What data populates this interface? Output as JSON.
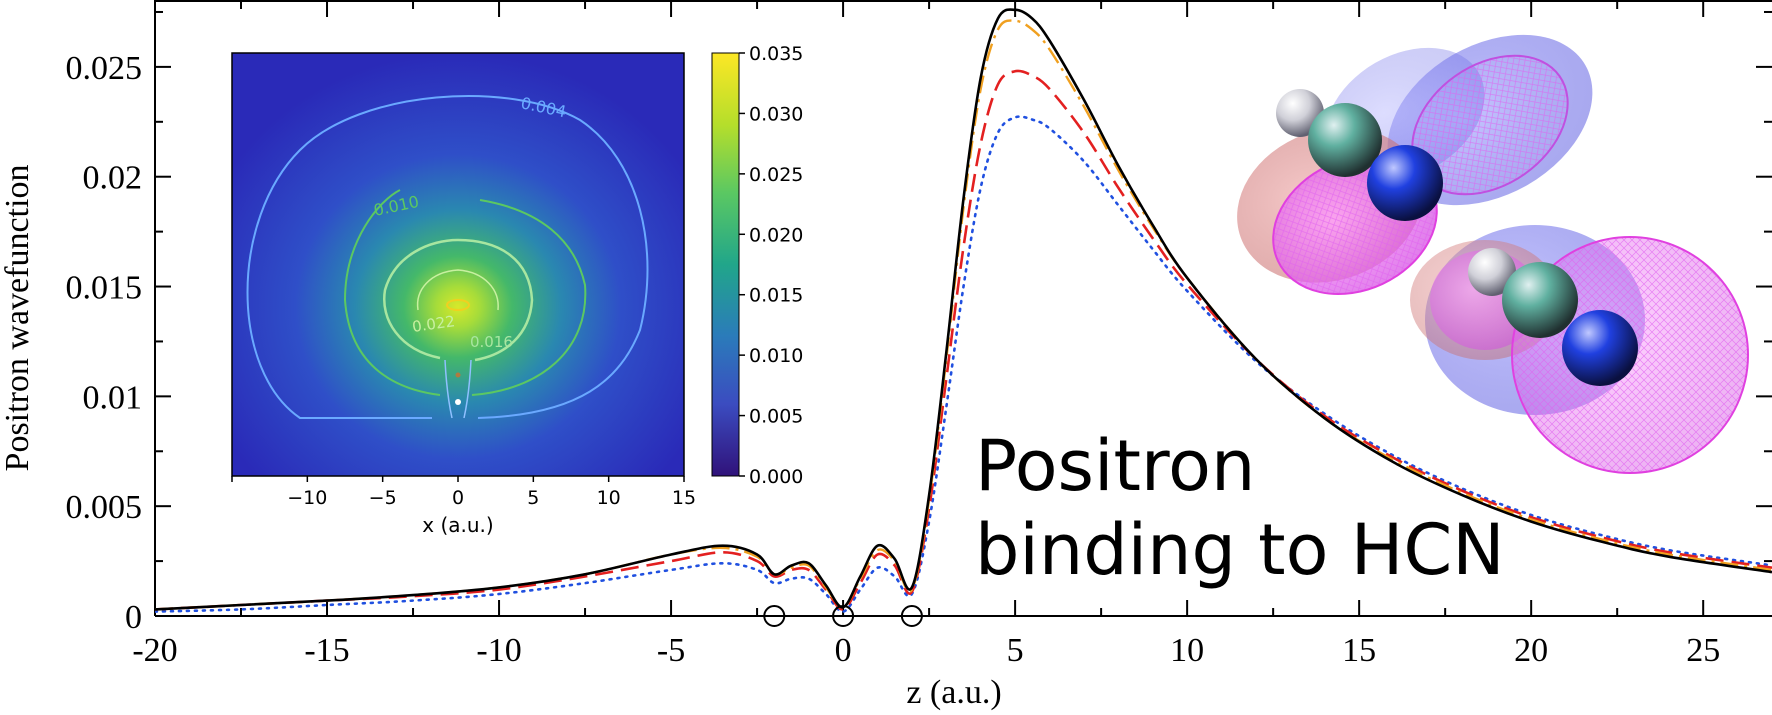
{
  "chart_data": [
    {
      "type": "line",
      "xlabel": "z (a.u.)",
      "ylabel": "Positron wavefunction",
      "xlim": [
        -20,
        27
      ],
      "ylim": [
        0,
        0.028
      ],
      "x_ticks": [
        -20,
        -15,
        -10,
        -5,
        0,
        5,
        10,
        15,
        20,
        25
      ],
      "x_tick_labels": [
        "-20",
        "-15",
        "-10",
        "-5",
        "0",
        "5",
        "10",
        "15",
        "20",
        "25"
      ],
      "y_ticks": [
        0,
        0.005,
        0.01,
        0.015,
        0.02,
        0.025
      ],
      "y_tick_labels": [
        "0",
        "0.005",
        "0.01",
        "0.015",
        "0.02",
        "0.025"
      ],
      "nuclei_z": [
        -2,
        0,
        2
      ],
      "series": [
        {
          "style": "solid",
          "color": "#000000",
          "x": [
            -20,
            -17.5,
            -15,
            -12.5,
            -10,
            -7.5,
            -5,
            -3.5,
            -2.5,
            -2,
            -1.5,
            -1,
            -0.5,
            0,
            0.5,
            1,
            1.5,
            2,
            2.5,
            3,
            3.5,
            4,
            4.5,
            5,
            5.5,
            6,
            7,
            8,
            9,
            10,
            12,
            14,
            16,
            18,
            20,
            22,
            24,
            27
          ],
          "y": [
            0.0003,
            0.0005,
            0.0007,
            0.00095,
            0.0013,
            0.0019,
            0.0028,
            0.0032,
            0.0028,
            0.0019,
            0.0023,
            0.0024,
            0.0014,
            0.0004,
            0.0018,
            0.0032,
            0.0026,
            0.0013,
            0.0055,
            0.012,
            0.019,
            0.0245,
            0.0272,
            0.0276,
            0.0272,
            0.0262,
            0.0235,
            0.0205,
            0.0178,
            0.0154,
            0.0117,
            0.009,
            0.007,
            0.0055,
            0.0043,
            0.0034,
            0.0027,
            0.002
          ]
        },
        {
          "style": "dash-dot",
          "color": "#f0a020",
          "x": [
            -20,
            -17.5,
            -15,
            -12.5,
            -10,
            -7.5,
            -5,
            -3.5,
            -2.5,
            -2,
            -1.5,
            -1,
            -0.5,
            0,
            0.5,
            1,
            1.5,
            2,
            2.5,
            3,
            3.5,
            4,
            4.5,
            5,
            5.5,
            6,
            7,
            8,
            9,
            10,
            12,
            14,
            16,
            18,
            20,
            22,
            24,
            27
          ],
          "y": [
            0.0003,
            0.0005,
            0.0007,
            0.00095,
            0.0013,
            0.0019,
            0.0028,
            0.0031,
            0.0027,
            0.0019,
            0.0022,
            0.0023,
            0.0013,
            0.0004,
            0.0017,
            0.003,
            0.0025,
            0.0012,
            0.0053,
            0.0117,
            0.0186,
            0.024,
            0.0267,
            0.0271,
            0.0267,
            0.0258,
            0.0232,
            0.0203,
            0.0177,
            0.0154,
            0.0117,
            0.009,
            0.0071,
            0.0056,
            0.0044,
            0.0035,
            0.0028,
            0.0021
          ]
        },
        {
          "style": "dashed",
          "color": "#e32020",
          "x": [
            -20,
            -17.5,
            -15,
            -12.5,
            -10,
            -7.5,
            -5,
            -3.5,
            -2.5,
            -2,
            -1.5,
            -1,
            -0.5,
            0,
            0.5,
            1,
            1.5,
            2,
            2.5,
            3,
            3.5,
            4,
            4.5,
            5,
            5.5,
            6,
            7,
            8,
            9,
            10,
            12,
            14,
            16,
            18,
            20,
            22,
            24,
            27
          ],
          "y": [
            0.0003,
            0.0005,
            0.0007,
            0.0009,
            0.0012,
            0.0018,
            0.0025,
            0.0029,
            0.0025,
            0.0018,
            0.0021,
            0.0021,
            0.0012,
            0.0003,
            0.0015,
            0.0028,
            0.0023,
            0.0011,
            0.0049,
            0.0108,
            0.0168,
            0.0215,
            0.0242,
            0.0248,
            0.0246,
            0.024,
            0.022,
            0.0195,
            0.0172,
            0.0151,
            0.0117,
            0.0091,
            0.0072,
            0.0057,
            0.0045,
            0.0036,
            0.0029,
            0.0022
          ]
        },
        {
          "style": "dotted",
          "color": "#2050e0",
          "x": [
            -20,
            -17.5,
            -15,
            -12.5,
            -10,
            -7.5,
            -5,
            -3.5,
            -2.5,
            -2,
            -1.5,
            -1,
            -0.5,
            0,
            0.5,
            1,
            1.5,
            2,
            2.5,
            3,
            3.5,
            4,
            4.5,
            5,
            5.5,
            6,
            7,
            8,
            9,
            10,
            12,
            14,
            16,
            18,
            20,
            22,
            24,
            27
          ],
          "y": [
            0.0002,
            0.0003,
            0.0005,
            0.0007,
            0.001,
            0.0015,
            0.0021,
            0.0024,
            0.0021,
            0.0015,
            0.0017,
            0.0017,
            0.001,
            0.0002,
            0.0012,
            0.0022,
            0.0018,
            0.001,
            0.0043,
            0.0095,
            0.015,
            0.0195,
            0.022,
            0.0227,
            0.0226,
            0.0222,
            0.0207,
            0.0187,
            0.0167,
            0.0148,
            0.0116,
            0.0092,
            0.0073,
            0.0058,
            0.0046,
            0.0037,
            0.003,
            0.0023
          ]
        }
      ]
    },
    {
      "type": "heatmap",
      "xlabel": "x (a.u.)",
      "xlim": [
        -15,
        15
      ],
      "x_ticks": [
        -10,
        -5,
        0,
        5,
        10,
        15
      ],
      "x_tick_labels": [
        "−10",
        "−5",
        "0",
        "5",
        "10",
        "15"
      ],
      "colorbar_ticks": [
        0,
        0.005,
        0.01,
        0.015,
        0.02,
        0.025,
        0.03,
        0.035
      ],
      "colorbar_tick_labels": [
        "0.000",
        "0.005",
        "0.010",
        "0.015",
        "0.020",
        "0.025",
        "0.030",
        "0.035"
      ],
      "colorbar_range": [
        0,
        0.035
      ],
      "colormap": [
        "#30127a",
        "#3b4cc0",
        "#2b7bba",
        "#21a68a",
        "#5bc862",
        "#b5de2b",
        "#fde725"
      ],
      "contour_labels": [
        {
          "text": "0.004",
          "color": "#6aa9ff"
        },
        {
          "text": "0.010",
          "color": "#5bc862"
        },
        {
          "text": "0.022",
          "color": "#c8f0a0"
        },
        {
          "text": "0.016",
          "color": "#a8e6a0"
        }
      ]
    }
  ],
  "annotation": {
    "line1": "Positron",
    "line2": "binding to HCN"
  }
}
